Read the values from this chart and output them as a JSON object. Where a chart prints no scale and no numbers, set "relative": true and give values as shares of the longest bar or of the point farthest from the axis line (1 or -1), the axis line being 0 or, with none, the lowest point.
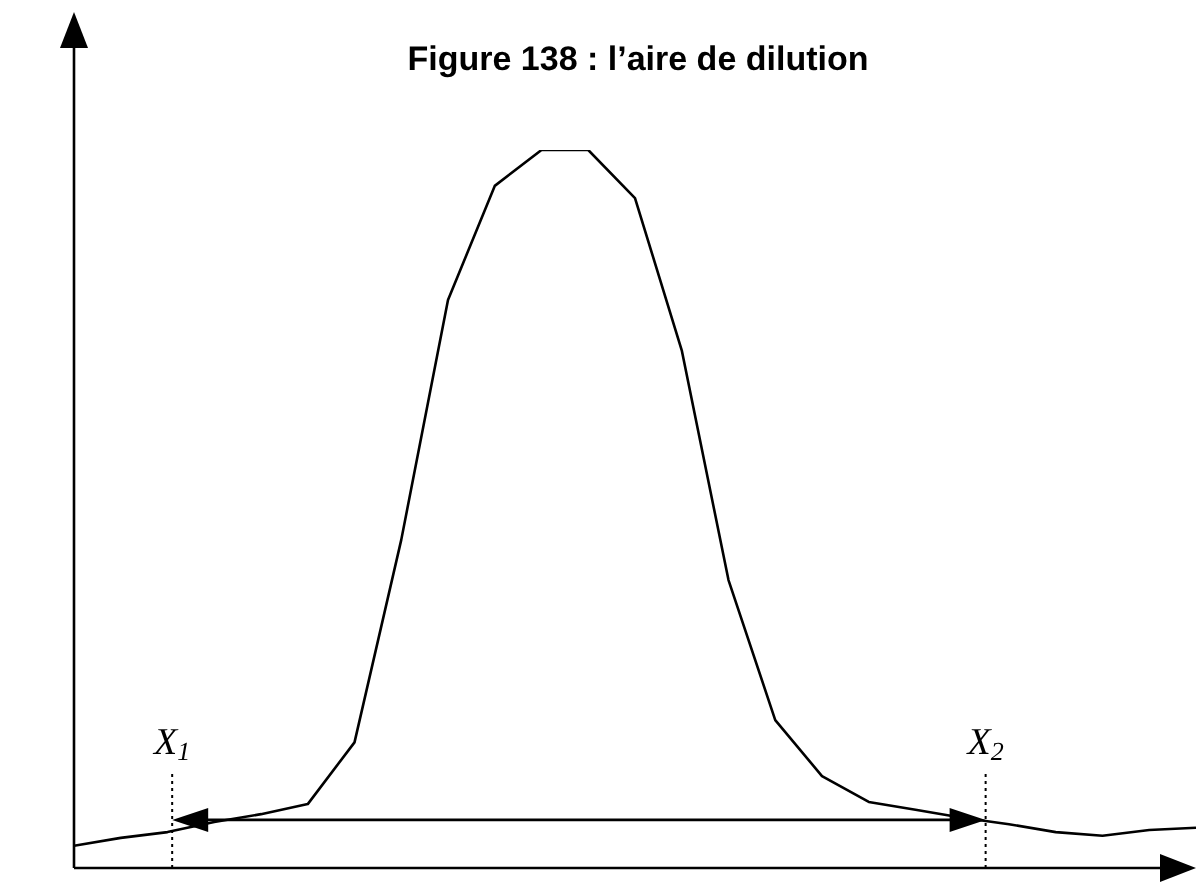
{
  "chart_data": {
    "type": "line",
    "title": "Figure 138 : l’aire de dilution",
    "relative": true,
    "categories": [
      null,
      null,
      null,
      null,
      null,
      null,
      null,
      null,
      null,
      null,
      null,
      null,
      null,
      null,
      null,
      null,
      null,
      null,
      null,
      null,
      null,
      null,
      null,
      null,
      null
    ],
    "marker": "none",
    "line_style": "solid",
    "series": [
      {
        "color": "#000000",
        "values": [
          0.031,
          0.042,
          0.05,
          0.064,
          0.075,
          0.089,
          0.175,
          0.457,
          0.791,
          0.95,
          1.0,
          1.0,
          0.933,
          0.721,
          0.401,
          0.206,
          0.128,
          0.092,
          0.081,
          0.07,
          0.061,
          0.05,
          0.045,
          0.053,
          0.056
        ]
      }
    ],
    "annotations": [
      "X$_{1}$",
      "X$_{2}$"
    ]
  }
}
